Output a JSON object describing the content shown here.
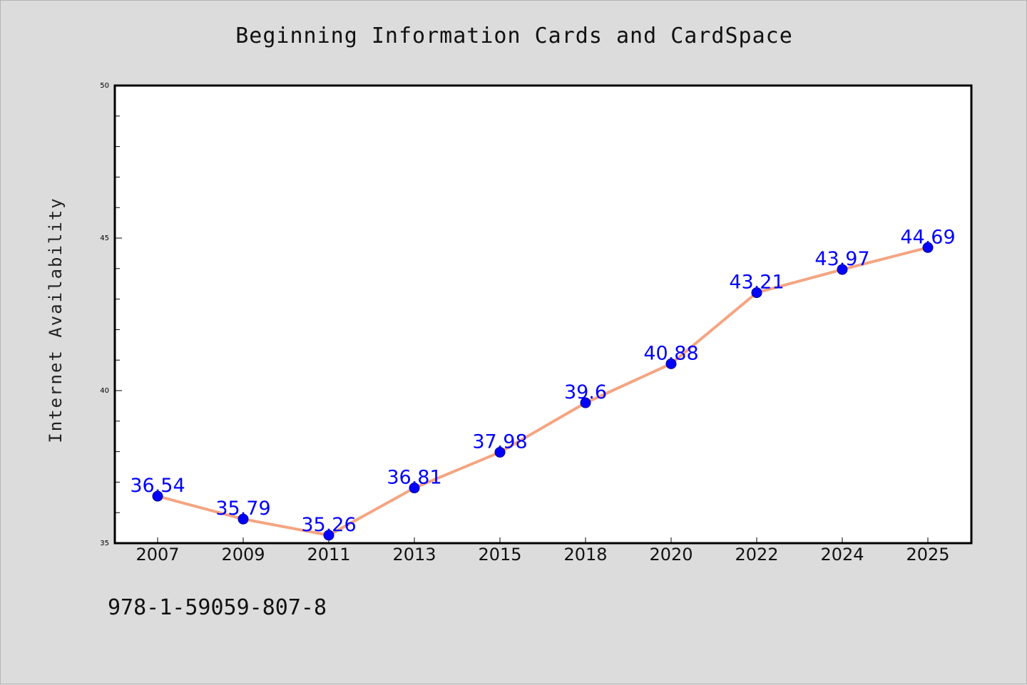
{
  "chart_data": {
    "type": "line",
    "title": "Beginning Information Cards and CardSpace",
    "xlabel": "",
    "ylabel": "Internet Availability",
    "categories": [
      "2007",
      "2009",
      "2011",
      "2013",
      "2015",
      "2018",
      "2020",
      "2022",
      "2024",
      "2025"
    ],
    "series": [
      {
        "values": [
          36.54,
          35.79,
          35.26,
          36.81,
          37.98,
          39.6,
          40.88,
          43.21,
          43.97,
          44.69
        ],
        "labels": [
          "36.54",
          "35.79",
          "35.26",
          "36.81",
          "37.98",
          "39.6",
          "40.88",
          "43.21",
          "43.97",
          "44.69"
        ]
      }
    ],
    "ylim": [
      35,
      50
    ],
    "yticks": [
      35,
      40,
      45,
      50
    ],
    "grid": false,
    "colors": {
      "line": "#f4a582",
      "marker": "#0000ff",
      "data_label": "#0000ff"
    }
  },
  "footer": {
    "isbn": "978-1-59059-807-8"
  }
}
